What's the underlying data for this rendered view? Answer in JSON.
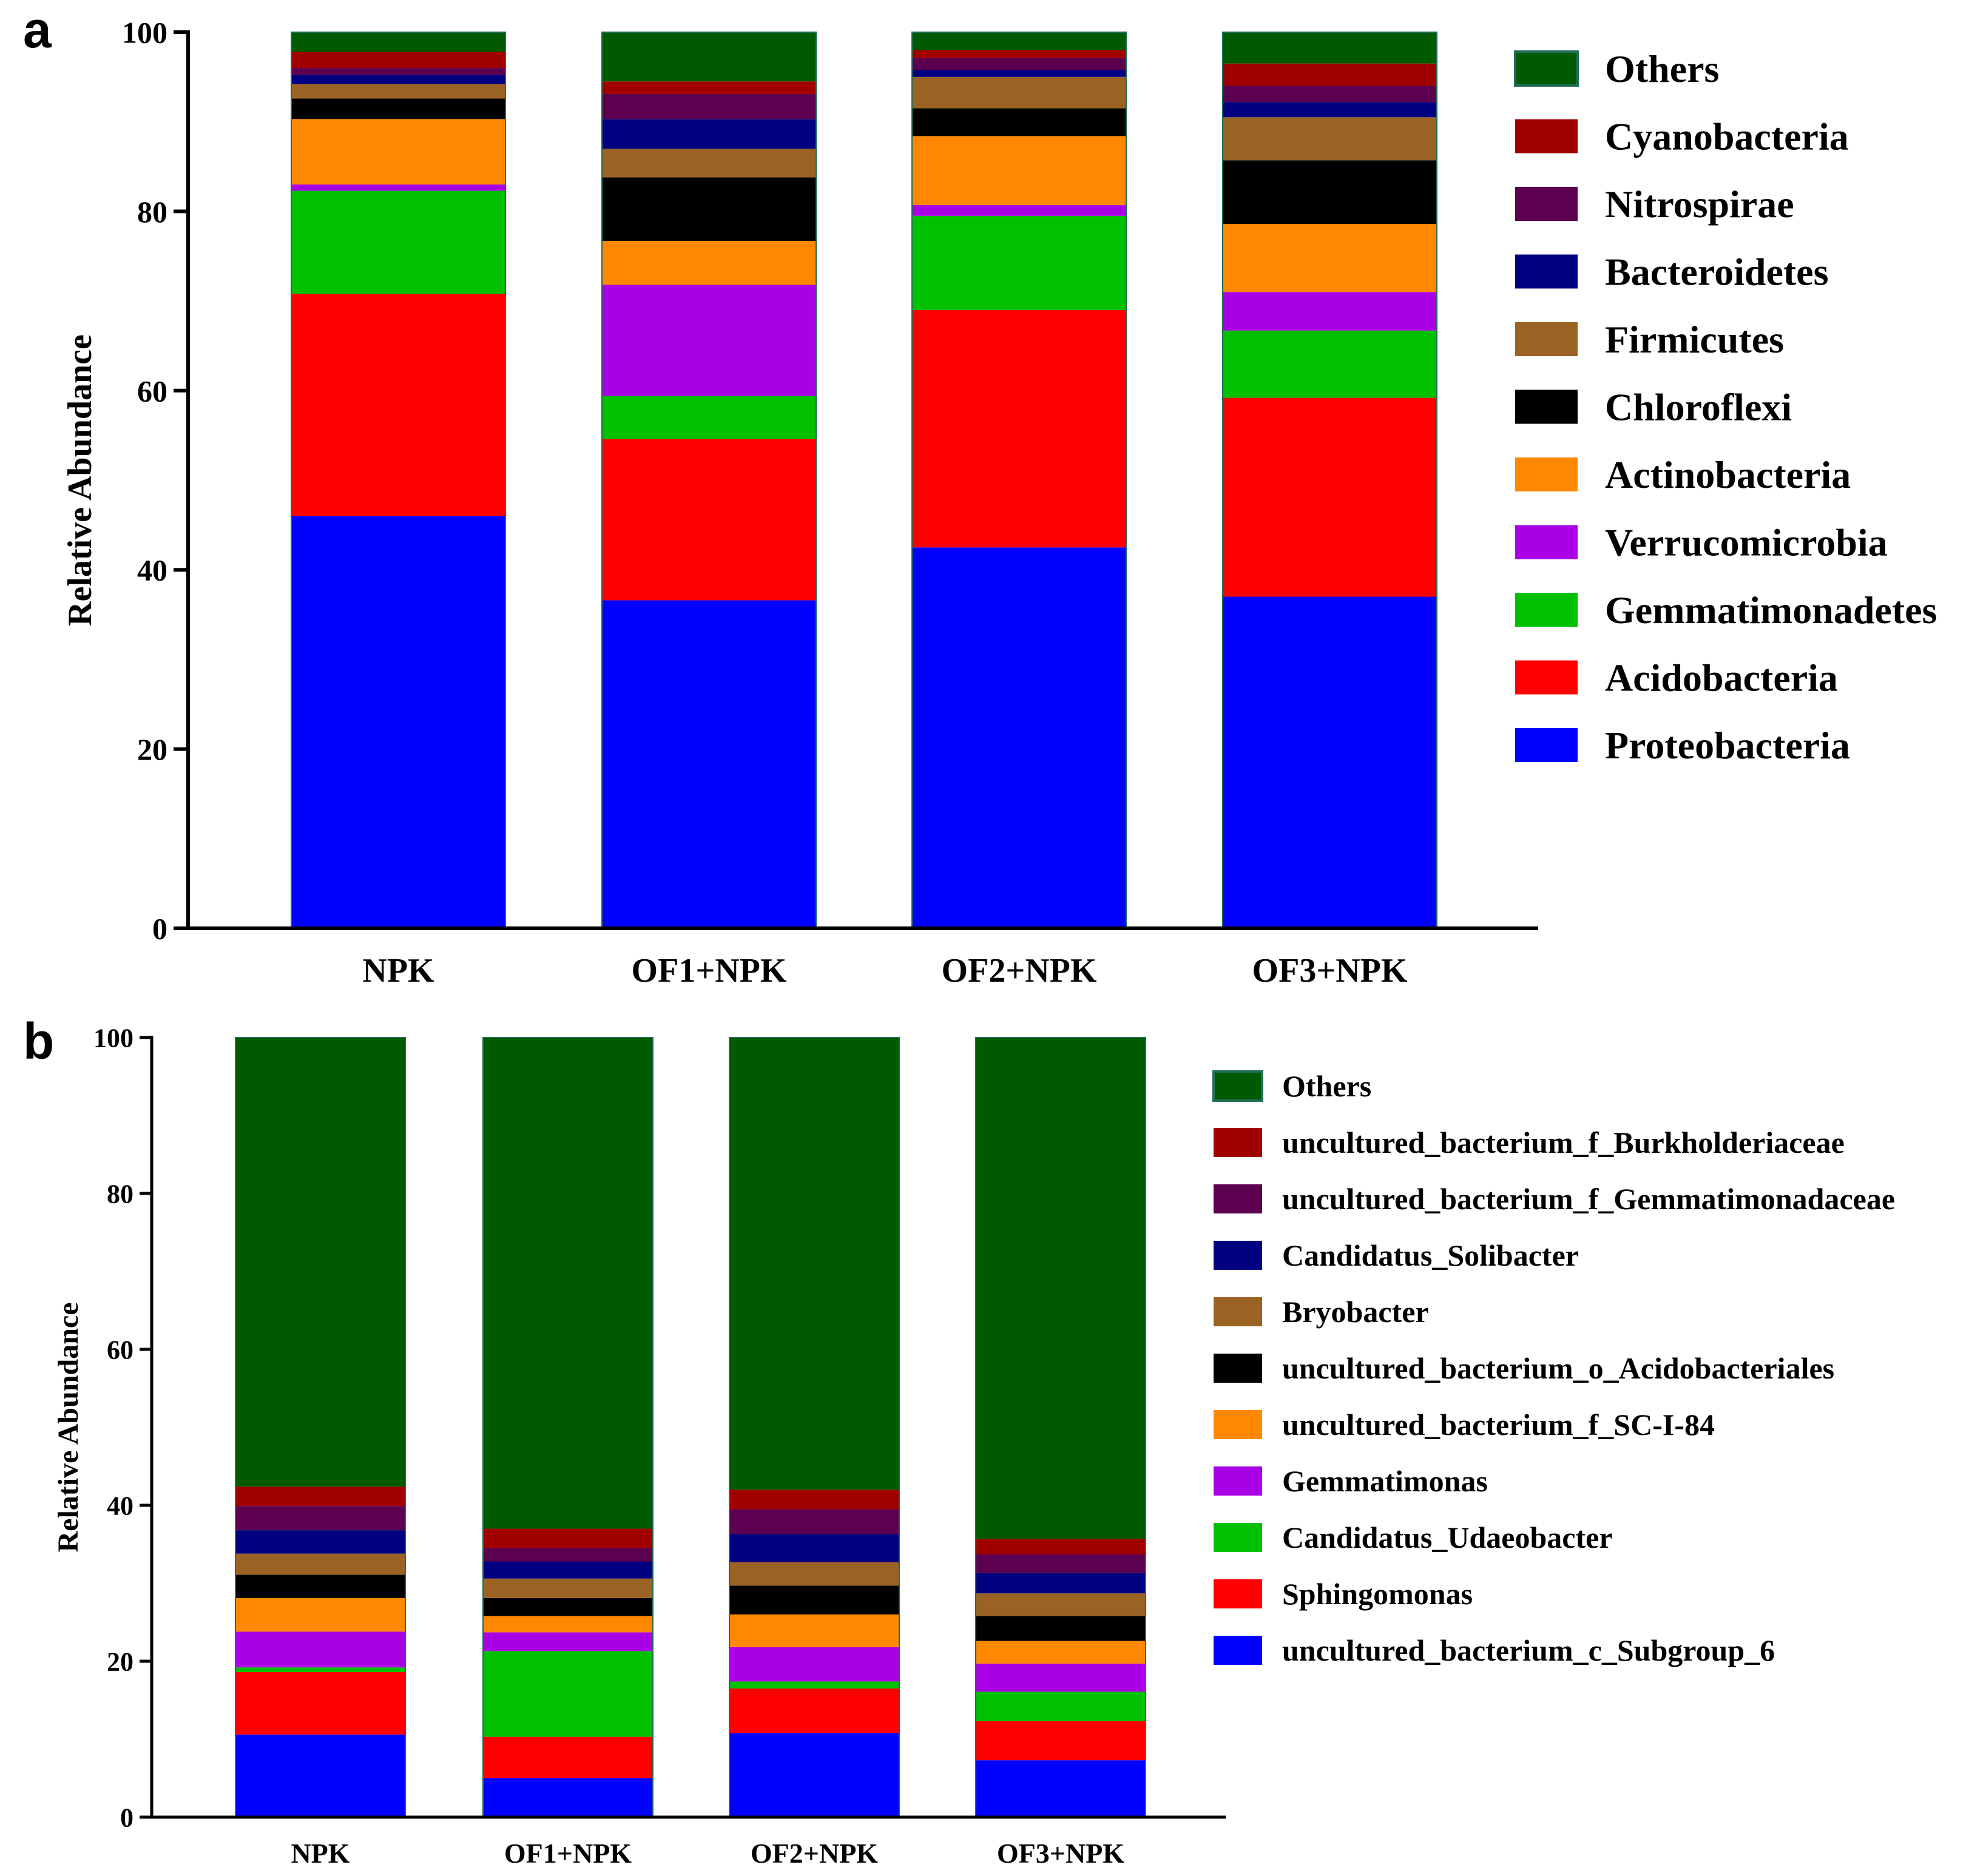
{
  "panels": [
    {
      "letter": "a",
      "chart_data": {
        "type": "bar",
        "stacked": true,
        "ylabel": "Relative Abundance",
        "xlabel": "",
        "ylim": [
          0,
          100
        ],
        "yticks": [
          "0",
          "20",
          "40",
          "60",
          "80",
          "100"
        ],
        "categories": [
          "NPK",
          "OF1+NPK",
          "OF2+NPK",
          "OF3+NPK"
        ],
        "legend_position": "right",
        "series": [
          {
            "name": "Proteobacteria",
            "color": "#0000FF",
            "values": [
              46.0,
              36.6,
              42.5,
              37.0
            ]
          },
          {
            "name": "Acidobacteria",
            "color": "#FF0000",
            "values": [
              24.8,
              18.0,
              26.5,
              22.2
            ]
          },
          {
            "name": "Gemmatimonadetes",
            "color": "#00C000",
            "values": [
              11.5,
              4.8,
              10.5,
              7.5
            ]
          },
          {
            "name": "Verrucomicrobia",
            "color": "#AA00E6",
            "values": [
              0.7,
              12.4,
              1.2,
              4.3
            ]
          },
          {
            "name": "Actinobacteria",
            "color": "#FF8800",
            "values": [
              7.3,
              4.9,
              7.7,
              7.6
            ]
          },
          {
            "name": "Chloroflexi",
            "color": "#000000",
            "values": [
              2.3,
              7.1,
              3.1,
              7.1
            ]
          },
          {
            "name": "Firmicutes",
            "color": "#9A6324",
            "values": [
              1.6,
              3.2,
              3.5,
              4.8
            ]
          },
          {
            "name": "Bacteroidetes",
            "color": "#000080",
            "values": [
              1.0,
              3.3,
              0.8,
              1.7
            ]
          },
          {
            "name": "Nitrospirae",
            "color": "#5C0050",
            "values": [
              0.8,
              2.8,
              1.3,
              1.8
            ]
          },
          {
            "name": "Cyanobacteria",
            "color": "#A00000",
            "values": [
              1.8,
              1.4,
              0.9,
              2.5
            ]
          },
          {
            "name": "Others",
            "color": "#005A00",
            "values": [
              2.2,
              5.5,
              2.0,
              3.5
            ]
          }
        ]
      }
    },
    {
      "letter": "b",
      "chart_data": {
        "type": "bar",
        "stacked": true,
        "ylabel": "Relative Abundance",
        "xlabel": "",
        "ylim": [
          0,
          100
        ],
        "yticks": [
          "0",
          "20",
          "40",
          "60",
          "80",
          "100"
        ],
        "categories": [
          "NPK",
          "OF1+NPK",
          "OF2+NPK",
          "OF3+NPK"
        ],
        "legend_position": "right",
        "series": [
          {
            "name": "uncultured_bacterium_c_Subgroup_6",
            "color": "#0000FF",
            "values": [
              10.6,
              5.0,
              10.8,
              7.3
            ]
          },
          {
            "name": "Sphingomonas",
            "color": "#FF0000",
            "values": [
              8.0,
              5.3,
              5.7,
              5.0
            ]
          },
          {
            "name": "Candidatus_Udaeobacter",
            "color": "#00C000",
            "values": [
              0.6,
              11.0,
              0.9,
              3.8
            ]
          },
          {
            "name": "Gemmatimonas",
            "color": "#AA00E6",
            "values": [
              4.6,
              2.4,
              4.4,
              3.6
            ]
          },
          {
            "name": "uncultured_bacterium_f_SC-I-84",
            "color": "#FF8800",
            "values": [
              4.3,
              2.1,
              4.2,
              2.9
            ]
          },
          {
            "name": "uncultured_bacterium_o_Acidobacteriales",
            "color": "#000000",
            "values": [
              3.0,
              2.3,
              3.7,
              3.2
            ]
          },
          {
            "name": "Bryobacter",
            "color": "#9A6324",
            "values": [
              2.7,
              2.5,
              3.0,
              2.9
            ]
          },
          {
            "name": "Candidatus_Solibacter",
            "color": "#000080",
            "values": [
              3.0,
              2.2,
              3.6,
              2.6
            ]
          },
          {
            "name": "uncultured_bacterium_f_Gemmatimonadaceae",
            "color": "#5C0050",
            "values": [
              3.1,
              1.7,
              3.2,
              2.4
            ]
          },
          {
            "name": "uncultured_bacterium_f_Burkholderiaceae",
            "color": "#A00000",
            "values": [
              2.5,
              2.5,
              2.5,
              2.0
            ]
          },
          {
            "name": "Others",
            "color": "#005A00",
            "values": [
              57.6,
              63.0,
              58.0,
              64.3
            ]
          }
        ]
      }
    }
  ]
}
